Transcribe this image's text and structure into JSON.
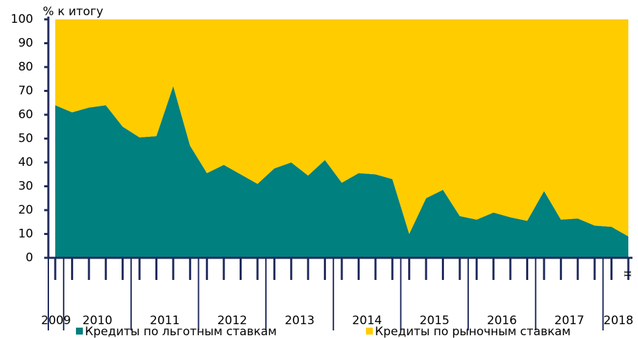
{
  "chart_data": {
    "type": "stacked_area",
    "y_label": "% к итогу",
    "categories": [
      null,
      null,
      null,
      null,
      null,
      null,
      null,
      null,
      null,
      null,
      null,
      null,
      null,
      null,
      null,
      null,
      null,
      null,
      null,
      null,
      null,
      null,
      null,
      null,
      null,
      null,
      null,
      null,
      null,
      null,
      null,
      null,
      null,
      null,
      "II"
    ],
    "x_groups": [
      {
        "label": "2009",
        "n": 1
      },
      {
        "label": "2010",
        "n": 4
      },
      {
        "label": "2011",
        "n": 4
      },
      {
        "label": "2012",
        "n": 4
      },
      {
        "label": "2013",
        "n": 4
      },
      {
        "label": "2014",
        "n": 4
      },
      {
        "label": "2015",
        "n": 4
      },
      {
        "label": "2016",
        "n": 4
      },
      {
        "label": "2017",
        "n": 4
      },
      {
        "label": "2018",
        "n": 2
      }
    ],
    "series": [
      {
        "name": "Кредиты по льготным ставкам",
        "color": "#00807f",
        "values": [
          64,
          61,
          63,
          64,
          55,
          50.5,
          51,
          72,
          47,
          35.5,
          39,
          35,
          31,
          37.5,
          40,
          34.5,
          41,
          31.5,
          35.5,
          35,
          33,
          10,
          25,
          28.5,
          17.5,
          16,
          19,
          17,
          15.5,
          28,
          16,
          16.5,
          13.5,
          13,
          9
        ]
      },
      {
        "name": "Кредиты по рыночным ставкам",
        "color": "#ffcc00",
        "values": [
          36,
          39,
          37,
          36,
          45,
          49.5,
          49,
          28,
          53,
          64.5,
          61,
          65,
          69,
          62.5,
          60,
          65.5,
          59,
          68.5,
          64.5,
          65,
          67,
          90,
          75,
          71.5,
          82.5,
          84,
          81,
          83,
          84.5,
          72,
          84,
          83.5,
          86.5,
          87,
          91
        ]
      }
    ],
    "ylim": [
      0,
      100
    ],
    "yticks": [
      0,
      10,
      20,
      30,
      40,
      50,
      60,
      70,
      80,
      90,
      100
    ]
  }
}
